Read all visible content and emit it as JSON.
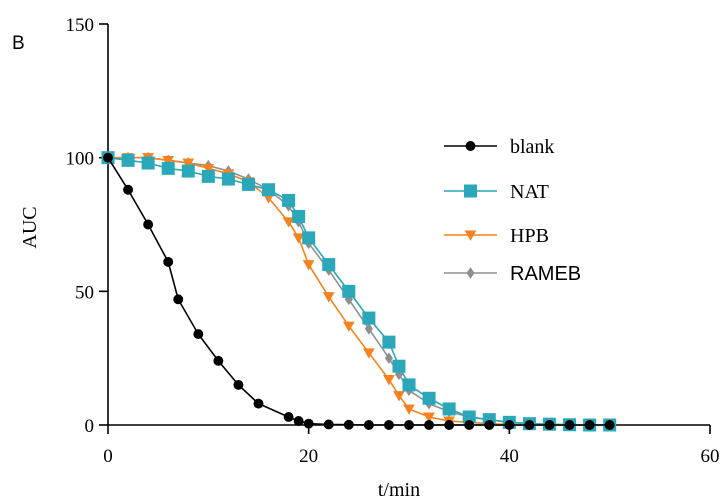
{
  "panel_label": "B",
  "colors": {
    "axis": "#000000",
    "blank": "#000000",
    "NAT": "#2aa7b8",
    "HPB": "#f5821f",
    "RAMEB": "#8f8f8f"
  },
  "chart_data": {
    "type": "line",
    "title": "",
    "xlabel": "t/min",
    "ylabel": "AUC",
    "xlim": [
      0,
      60
    ],
    "ylim": [
      0,
      150
    ],
    "xticks": [
      "0",
      "20",
      "40",
      "60"
    ],
    "yticks": [
      "0",
      "50",
      "100",
      "150"
    ],
    "legend_position": "right",
    "series": [
      {
        "name": "blank",
        "marker": "circle",
        "x": [
          0,
          2,
          4,
          6,
          7,
          9,
          11,
          13,
          15,
          18,
          19,
          20,
          22,
          24,
          26,
          28,
          30,
          32,
          34,
          36,
          38,
          40,
          42,
          44,
          46,
          48,
          50
        ],
        "y": [
          100,
          88,
          75,
          61,
          47,
          34,
          24,
          15,
          8,
          3,
          1.5,
          0.5,
          0.2,
          0.1,
          0,
          0,
          0,
          0,
          0,
          0,
          0,
          0,
          0,
          0,
          0,
          0,
          0
        ]
      },
      {
        "name": "NAT",
        "marker": "square",
        "x": [
          0,
          2,
          4,
          6,
          8,
          10,
          12,
          14,
          16,
          18,
          19,
          20,
          22,
          24,
          26,
          28,
          29,
          30,
          32,
          34,
          36,
          38,
          40,
          42,
          44,
          46,
          48,
          50
        ],
        "y": [
          100,
          99,
          98,
          96,
          95,
          93,
          92,
          90,
          88,
          84,
          78,
          70,
          60,
          50,
          40,
          31,
          22,
          15,
          10,
          6,
          3,
          2,
          1,
          0.5,
          0.3,
          0.1,
          0,
          0
        ]
      },
      {
        "name": "HPB",
        "marker": "triangle-down",
        "x": [
          0,
          2,
          4,
          6,
          8,
          10,
          12,
          14,
          16,
          18,
          19,
          20,
          22,
          24,
          26,
          28,
          29,
          30,
          32,
          34,
          36,
          38,
          40,
          42,
          44,
          46,
          48,
          50
        ],
        "y": [
          100,
          100,
          100,
          99,
          98,
          96,
          94,
          91,
          85,
          76,
          70,
          60,
          48,
          37,
          27,
          17,
          11,
          6,
          3,
          1.5,
          1,
          0.5,
          0.2,
          0.1,
          0,
          0,
          0,
          0
        ]
      },
      {
        "name": "RAMEB",
        "marker": "diamond",
        "x": [
          0,
          2,
          4,
          6,
          8,
          10,
          12,
          14,
          16,
          18,
          19,
          20,
          22,
          24,
          26,
          28,
          29,
          30,
          32,
          34,
          36,
          38,
          40,
          42,
          44,
          46,
          48,
          50
        ],
        "y": [
          100,
          100,
          100,
          99,
          98,
          97,
          95,
          92,
          88,
          82,
          76,
          68,
          58,
          47,
          36,
          25,
          19,
          13,
          8,
          5,
          3,
          2,
          1,
          0.5,
          0.2,
          0.1,
          0,
          0
        ]
      }
    ]
  }
}
